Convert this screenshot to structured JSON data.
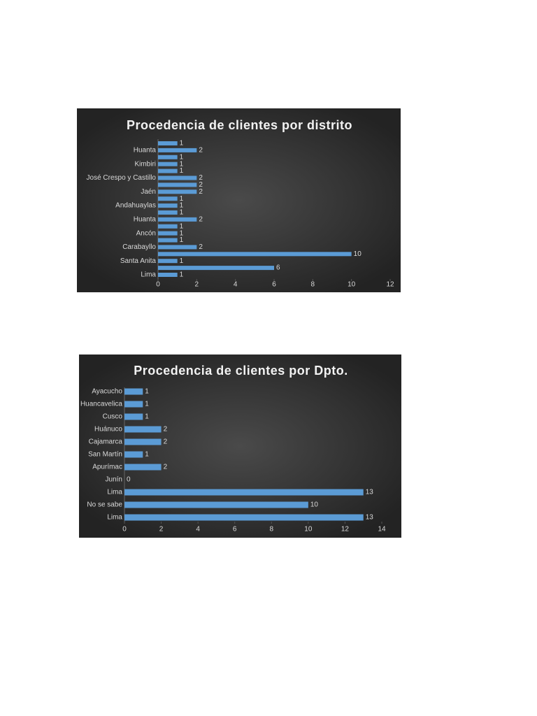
{
  "chart_data": [
    {
      "type": "bar",
      "orientation": "horizontal",
      "title": "Procedencia de clientes por distrito",
      "categories": [
        "Lima",
        null,
        "Santa Anita",
        null,
        "Carabayllo",
        null,
        "Ancón",
        null,
        "Huanta",
        null,
        "Andahuaylas",
        null,
        "Jaén",
        null,
        "José Crespo y Castillo",
        null,
        "Kimbiri",
        null,
        "Huanta",
        null
      ],
      "values": [
        1,
        6,
        1,
        10,
        2,
        1,
        1,
        1,
        2,
        1,
        1,
        1,
        2,
        2,
        2,
        1,
        1,
        1,
        2,
        1
      ],
      "color": "#5b9bd5",
      "xlim": [
        0,
        12
      ],
      "xticks": [
        0,
        2,
        4,
        6,
        8,
        10,
        12
      ]
    },
    {
      "type": "bar",
      "orientation": "horizontal",
      "title": "Procedencia de clientes por Dpto.",
      "categories": [
        "Lima",
        "No se sabe",
        "Lima",
        "Junín",
        "Apurímac",
        "San Martín",
        "Cajamarca",
        "Huánuco",
        "Cusco",
        "Huancavelica",
        "Ayacucho"
      ],
      "values": [
        13,
        10,
        13,
        0,
        2,
        1,
        2,
        2,
        1,
        1,
        1
      ],
      "color": "#5b9bd5",
      "xlim": [
        0,
        14
      ],
      "xticks": [
        0,
        2,
        4,
        6,
        8,
        10,
        12,
        14
      ]
    }
  ]
}
